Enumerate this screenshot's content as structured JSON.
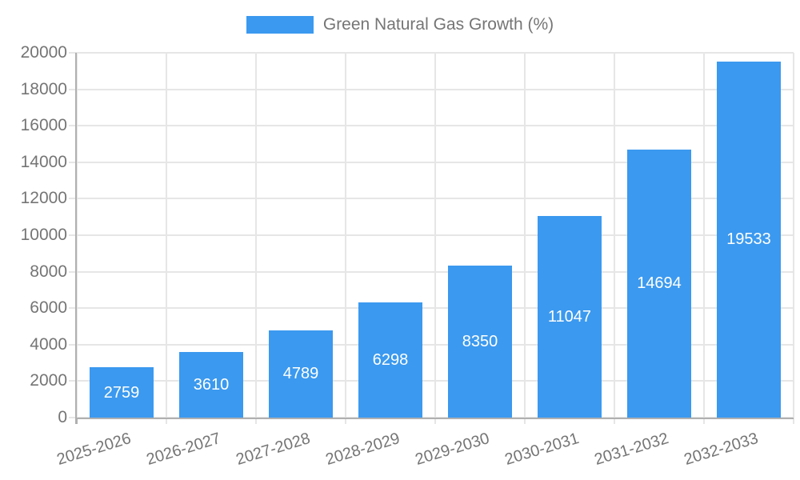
{
  "chart_data": {
    "type": "bar",
    "title": "",
    "legend": "Green Natural Gas Growth (%)",
    "legend_position": "top",
    "categories": [
      "2025-2026",
      "2026-2027",
      "2027-2028",
      "2028-2029",
      "2029-2030",
      "2030-2031",
      "2031-2032",
      "2032-2033"
    ],
    "values": [
      2759,
      3610,
      4789,
      6298,
      8350,
      11047,
      14694,
      19533
    ],
    "xlabel": "",
    "ylabel": "",
    "ylim": [
      0,
      20000
    ],
    "ytick_step": 2000,
    "yticks": [
      0,
      2000,
      4000,
      6000,
      8000,
      10000,
      12000,
      14000,
      16000,
      18000,
      20000
    ],
    "grid": true,
    "colors": {
      "bar": "#3b99ef",
      "grid": "#e6e6e6",
      "axis": "#b0b0b0",
      "tick_text": "#757575",
      "value_label": "#ffffff"
    }
  }
}
